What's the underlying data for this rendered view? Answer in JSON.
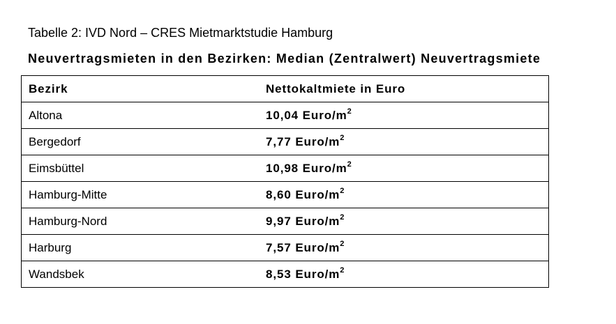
{
  "caption": "Tabelle 2: IVD Nord – CRES Mietmarktstudie Hamburg",
  "subtitle": "Neuvertragsmieten in den Bezirken: Median (Zentralwert) Neuvertragsmiete",
  "table": {
    "headers": [
      "Bezirk",
      "Nettokaltmiete in Euro"
    ],
    "unit": "Euro/m",
    "unit_exponent": "2",
    "rows": [
      {
        "bezirk": "Altona",
        "miete": "10,04"
      },
      {
        "bezirk": "Bergedorf",
        "miete": "7,77"
      },
      {
        "bezirk": "Eimsbüttel",
        "miete": "10,98"
      },
      {
        "bezirk": "Hamburg-Mitte",
        "miete": "8,60"
      },
      {
        "bezirk": "Hamburg-Nord",
        "miete": "9,97"
      },
      {
        "bezirk": "Harburg",
        "miete": "7,57"
      },
      {
        "bezirk": "Wandsbek",
        "miete": "8,53"
      }
    ]
  }
}
